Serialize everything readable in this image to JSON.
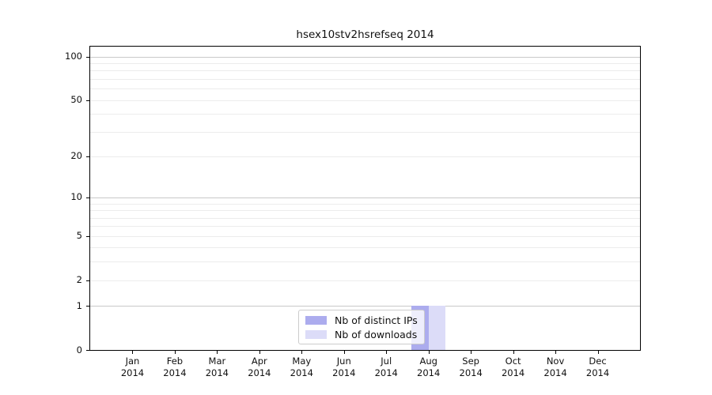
{
  "title": "hsex10stv2hsrefseq 2014",
  "chart_data": {
    "type": "bar",
    "title": "hsex10stv2hsrefseq 2014",
    "categories": [
      {
        "line1": "Jan",
        "line2": "2014"
      },
      {
        "line1": "Feb",
        "line2": "2014"
      },
      {
        "line1": "Mar",
        "line2": "2014"
      },
      {
        "line1": "Apr",
        "line2": "2014"
      },
      {
        "line1": "May",
        "line2": "2014"
      },
      {
        "line1": "Jun",
        "line2": "2014"
      },
      {
        "line1": "Jul",
        "line2": "2014"
      },
      {
        "line1": "Aug",
        "line2": "2014"
      },
      {
        "line1": "Sep",
        "line2": "2014"
      },
      {
        "line1": "Oct",
        "line2": "2014"
      },
      {
        "line1": "Nov",
        "line2": "2014"
      },
      {
        "line1": "Dec",
        "line2": "2014"
      }
    ],
    "series": [
      {
        "name": "Nb of distinct IPs",
        "color": "#acacee",
        "values": [
          0,
          0,
          0,
          0,
          0,
          0,
          0,
          1,
          0,
          0,
          0,
          0
        ]
      },
      {
        "name": "Nb of downloads",
        "color": "#dcdcf8",
        "values": [
          0,
          0,
          0,
          0,
          0,
          0,
          0,
          1,
          0,
          0,
          0,
          0
        ]
      }
    ],
    "y_axis": {
      "scale": "log1p",
      "max": 117,
      "ticks": [
        {
          "v": 0,
          "label": "0"
        },
        {
          "v": 1,
          "label": "1"
        },
        {
          "v": 2,
          "label": "2"
        },
        {
          "v": 5,
          "label": "5"
        },
        {
          "v": 10,
          "label": "10"
        },
        {
          "v": 20,
          "label": "20"
        },
        {
          "v": 50,
          "label": "50"
        },
        {
          "v": 100,
          "label": "100"
        }
      ],
      "major_gridlines": [
        1,
        10,
        100
      ],
      "minor_gridlines": [
        2,
        3,
        4,
        5,
        6,
        7,
        8,
        9,
        20,
        30,
        40,
        50,
        60,
        70,
        80,
        90
      ]
    },
    "legend_position": "bottom-center",
    "grid": true
  },
  "colors": {
    "major_grid": "#c9c9c9",
    "minor_grid": "#ececec",
    "axis": "#000000",
    "text": "#111111",
    "legend_border": "#cccccc",
    "bar_distinct_ips": "#acacee",
    "bar_downloads": "#dcdcf8"
  }
}
